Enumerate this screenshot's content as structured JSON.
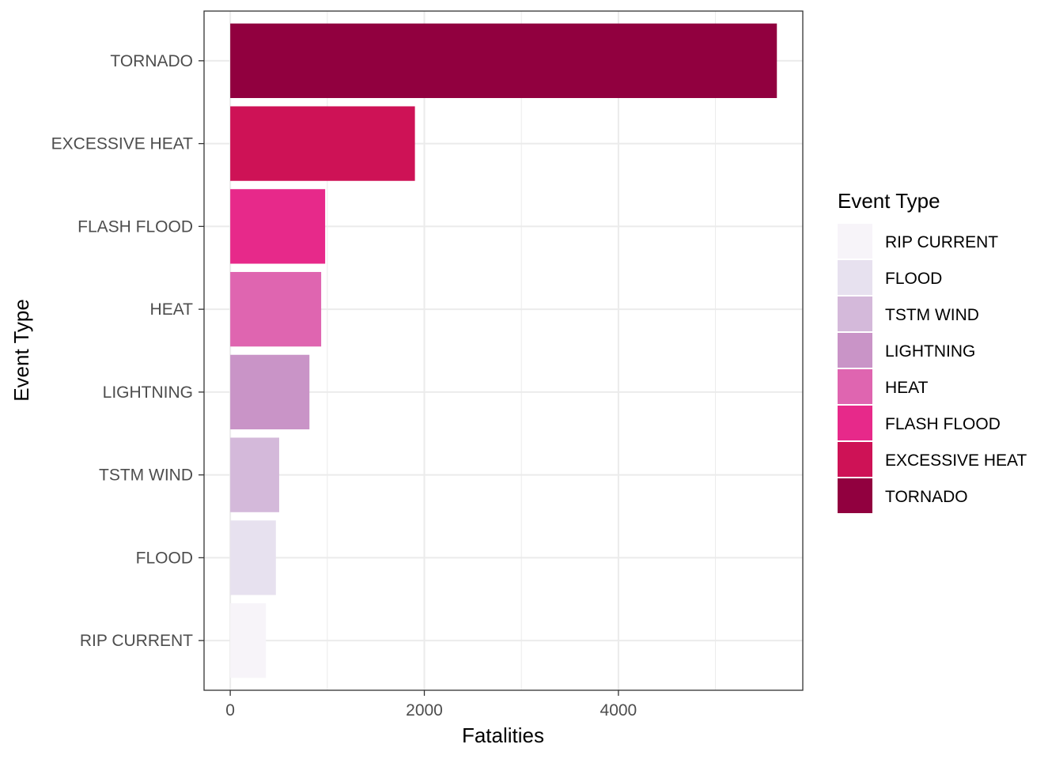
{
  "chart_data": {
    "type": "bar",
    "orientation": "horizontal",
    "categories": [
      "TORNADO",
      "EXCESSIVE HEAT",
      "FLASH FLOOD",
      "HEAT",
      "LIGHTNING",
      "TSTM WIND",
      "FLOOD",
      "RIP CURRENT"
    ],
    "values": [
      5633,
      1903,
      978,
      937,
      816,
      504,
      470,
      368
    ],
    "colors": [
      "#91003f",
      "#ce1256",
      "#e7298a",
      "#df65b0",
      "#c994c7",
      "#d4b9da",
      "#e7e1ef",
      "#f7f4f9"
    ],
    "title": "",
    "xlabel": "Fatalities",
    "ylabel": "Event Type",
    "xlim": [
      -270,
      5900
    ],
    "xticks": [
      0,
      2000,
      4000
    ],
    "xtick_labels": [
      "0",
      "2000",
      "4000"
    ],
    "grid": true,
    "legend": {
      "title": "Event Type",
      "placement": "right",
      "entries": [
        "RIP CURRENT",
        "FLOOD",
        "TSTM WIND",
        "LIGHTNING",
        "HEAT",
        "FLASH FLOOD",
        "EXCESSIVE HEAT",
        "TORNADO"
      ],
      "colors": [
        "#f7f4f9",
        "#e7e1ef",
        "#d4b9da",
        "#c994c7",
        "#df65b0",
        "#e7298a",
        "#ce1256",
        "#91003f"
      ]
    }
  }
}
